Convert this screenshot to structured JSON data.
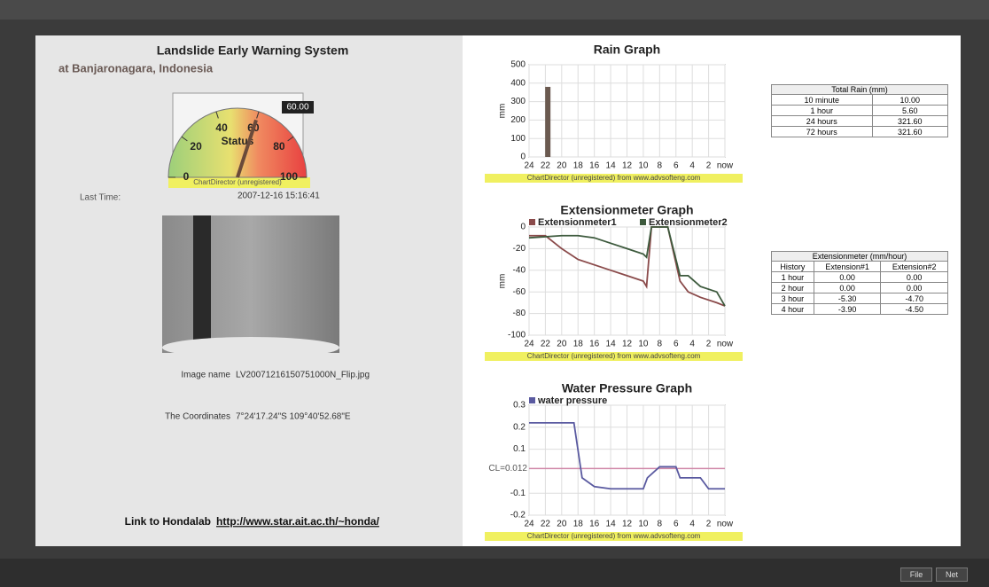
{
  "header": {
    "title": "Landslide Early Warning System",
    "subtitle": "at Banjaronagara, Indonesia"
  },
  "info": {
    "last_time_label": "Last Time:",
    "last_time": "2007-12-16 15:16:41",
    "image_name_label": "Image name",
    "image_name": "LV20071216150751000N_Flip.jpg",
    "coordinates_label": "The Coordinates",
    "coordinates": "7°24'17.24\"S 109°40'52.68\"E",
    "link_label": "Link to Hondalab",
    "link": "http://www.star.ait.ac.th/~honda/"
  },
  "rain_table": {
    "title": "Total Rain (mm)",
    "rows": [
      [
        "10 minute",
        "10.00"
      ],
      [
        "1 hour",
        "5.60"
      ],
      [
        "24 hours",
        "321.60"
      ],
      [
        "72 hours",
        "321.60"
      ]
    ]
  },
  "extension_table": {
    "title": "Extensionmeter (mm/hour)",
    "header": [
      "History",
      "Extension#1",
      "Extension#2"
    ],
    "rows": [
      [
        "1 hour",
        "0.00",
        "0.00"
      ],
      [
        "2 hour",
        "0.00",
        "0.00"
      ],
      [
        "3 hour",
        "-5.30",
        "-4.70"
      ],
      [
        "4 hour",
        "-3.90",
        "-4.50"
      ]
    ]
  },
  "buttons": [
    "File",
    "Net"
  ],
  "chart_data": [
    {
      "type": "gauge",
      "title": "Status",
      "value": 60,
      "value_label": "60.00",
      "range": [
        0,
        100
      ],
      "ticks": [
        0,
        20,
        40,
        60,
        80,
        100
      ],
      "watermark": "ChartDirector (unregistered)"
    },
    {
      "type": "bar",
      "title": "Rain Graph",
      "y_label": "mm",
      "color": "#6b5a50",
      "x": [
        21.7
      ],
      "values": [
        380
      ],
      "xlim": [
        24,
        0
      ],
      "xticks": [
        24,
        22,
        20,
        18,
        16,
        14,
        12,
        10,
        8,
        6,
        4,
        2,
        {
          "value": 0,
          "label": "now"
        }
      ],
      "ylim": [
        0,
        500
      ],
      "yticks": [
        0,
        100,
        200,
        300,
        400,
        500
      ],
      "grid": true,
      "watermark": "ChartDirector (unregistered) from www.advsofteng.com"
    },
    {
      "type": "line",
      "title": "Extensionmeter Graph",
      "y_label": "mm",
      "x": [
        24,
        22,
        20,
        18,
        16,
        14,
        12,
        10,
        9.6,
        9,
        7,
        5.5,
        4.5,
        3,
        1,
        0
      ],
      "series": [
        {
          "name": "Extensionmeter1",
          "color": "#8a4a4a",
          "values": [
            -8,
            -8,
            -20,
            -30,
            -35,
            -40,
            -45,
            -50,
            -55,
            0,
            0,
            -50,
            -60,
            -65,
            -70,
            -73
          ]
        },
        {
          "name": "Extensionmeter2",
          "color": "#3d5a3d",
          "values": [
            -10,
            -9,
            -8,
            -8,
            -10,
            -15,
            -20,
            -25,
            -28,
            0,
            0,
            -45,
            -45,
            -55,
            -60,
            -73
          ]
        }
      ],
      "xlim": [
        24,
        0
      ],
      "xticks": [
        24,
        22,
        20,
        18,
        16,
        14,
        12,
        10,
        8,
        6,
        4,
        2,
        {
          "value": 0,
          "label": "now"
        }
      ],
      "ylim": [
        -100,
        0
      ],
      "yticks": [
        -100,
        -80,
        -60,
        -40,
        -20,
        0
      ],
      "grid": true,
      "legend": "top-left",
      "watermark": "ChartDirector (unregistered) from www.advsofteng.com"
    },
    {
      "type": "line",
      "title": "Water Pressure Graph",
      "x": [
        24,
        18.5,
        17.5,
        16,
        14,
        11,
        10,
        9.5,
        8,
        6,
        5.5,
        3,
        2,
        0
      ],
      "series": [
        {
          "name": "water pressure",
          "color": "#5a5aa0",
          "values": [
            0.22,
            0.22,
            -0.03,
            -0.07,
            -0.08,
            -0.08,
            -0.08,
            -0.03,
            0.02,
            0.02,
            -0.03,
            -0.03,
            -0.08,
            -0.08
          ]
        }
      ],
      "ref_line": {
        "value": 0.012,
        "label": "CL=0.012",
        "color": "#d088a8"
      },
      "xlim": [
        24,
        0
      ],
      "xticks": [
        24,
        22,
        20,
        18,
        16,
        14,
        12,
        10,
        8,
        6,
        4,
        2,
        {
          "value": 0,
          "label": "now"
        }
      ],
      "ylim": [
        -0.2,
        0.3
      ],
      "yticks": [
        -0.2,
        -0.1,
        0.1,
        0.2,
        0.3
      ],
      "grid": true,
      "legend": "top-left",
      "watermark": "ChartDirector (unregistered) from www.advsofteng.com"
    }
  ]
}
